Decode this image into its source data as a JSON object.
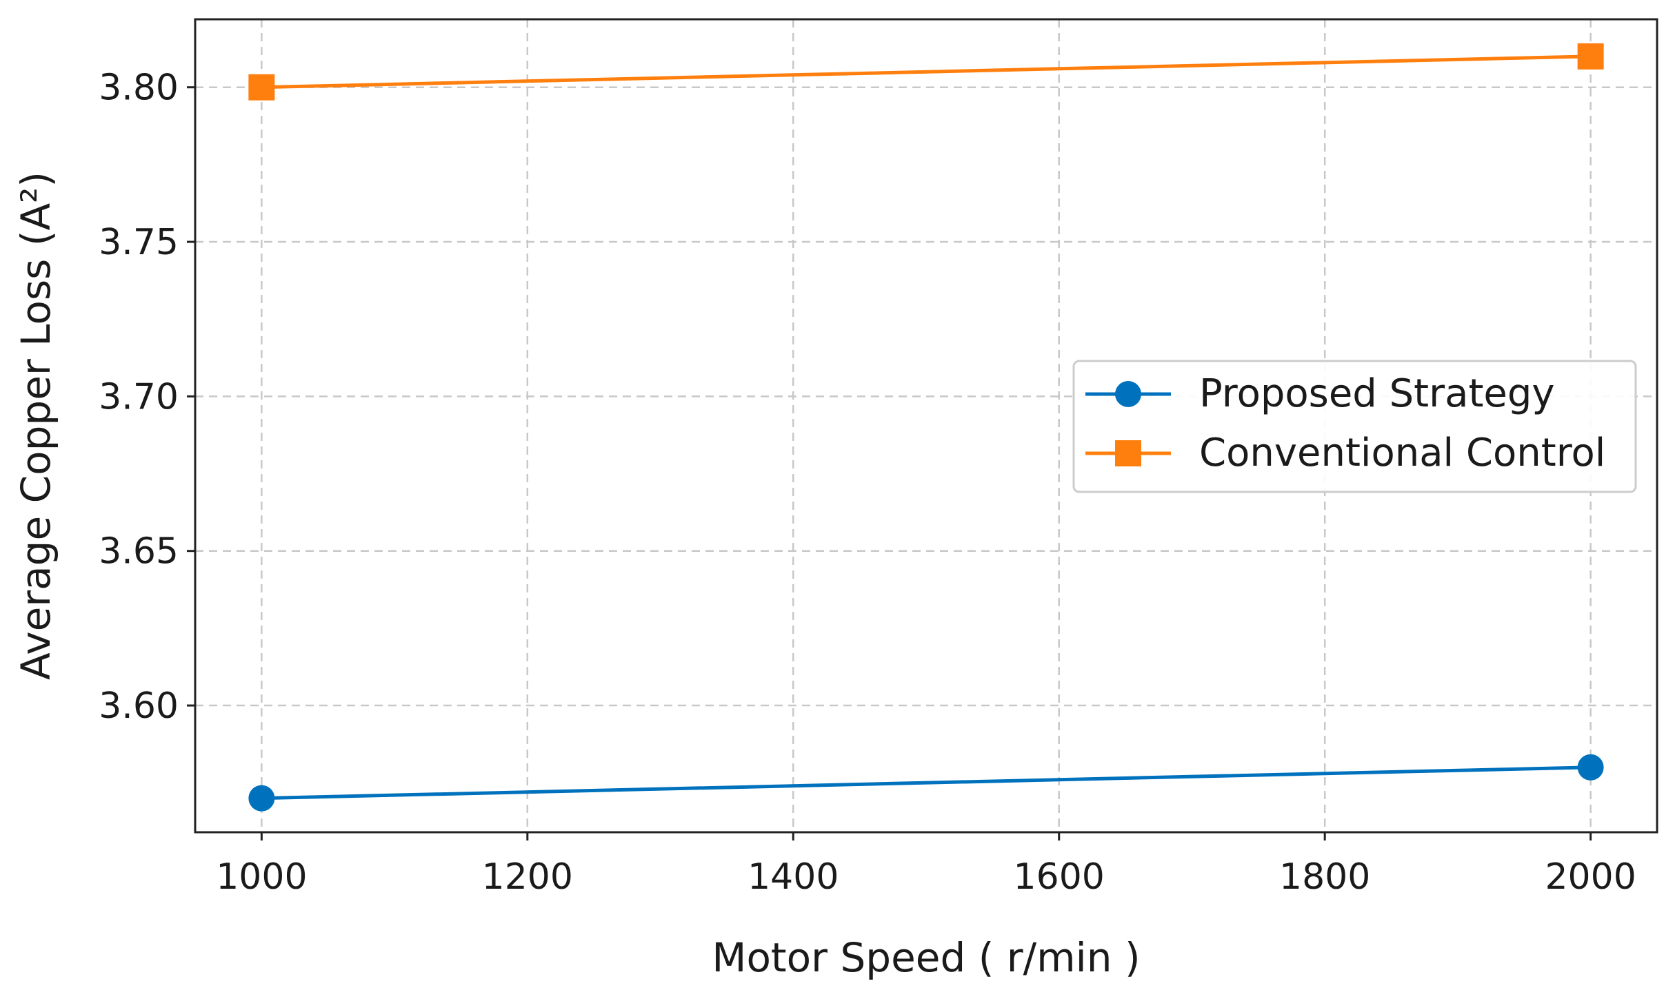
{
  "chart_data": {
    "type": "line",
    "title": "",
    "xlabel": "Motor Speed ( r/min )",
    "ylabel": "Average Copper Loss (A²)",
    "xlim": [
      950,
      2050
    ],
    "ylim": [
      3.559,
      3.822
    ],
    "xticks": [
      1000,
      1200,
      1400,
      1600,
      1800,
      2000
    ],
    "xtick_labels": [
      "1000",
      "1200",
      "1400",
      "1600",
      "1800",
      "2000"
    ],
    "yticks": [
      3.6,
      3.65,
      3.7,
      3.75,
      3.8
    ],
    "ytick_labels": [
      "3.60",
      "3.65",
      "3.70",
      "3.75",
      "3.80"
    ],
    "grid": true,
    "legend_position": "center-right",
    "x": [
      1000,
      2000
    ],
    "series": [
      {
        "name": "Proposed Strategy",
        "values": [
          3.57,
          3.58
        ],
        "color": "#0072bd",
        "marker": "circle"
      },
      {
        "name": "Conventional Control",
        "values": [
          3.8,
          3.81
        ],
        "color": "#ff7f0e",
        "marker": "square"
      }
    ]
  }
}
